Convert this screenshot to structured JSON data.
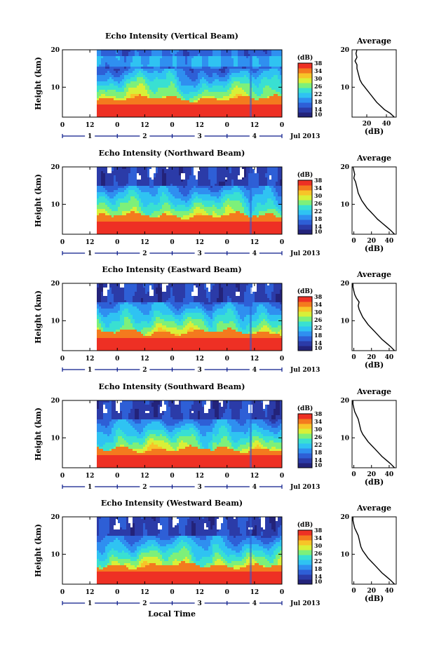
{
  "figure": {
    "day_axis_label": "Jul 2013",
    "bottom_xlabel": "Local Time"
  },
  "colors": {
    "colormap": [
      "#23237a",
      "#2b3ba8",
      "#2e5fd6",
      "#2f8ff0",
      "#2fc3f2",
      "#39e0d2",
      "#7df07a",
      "#d8f038",
      "#f7c428",
      "#f47a1e",
      "#ee3024"
    ]
  },
  "chart_data": [
    {
      "type": "heatmap",
      "title": "Echo Intensity (Vertical Beam)",
      "ylabel": "Height (km)",
      "ylim": [
        2,
        20
      ],
      "yticks": [
        10,
        20
      ],
      "hour_ticks": [
        "0",
        "12",
        "0",
        "12",
        "0",
        "12",
        "0",
        "12",
        "0"
      ],
      "day_ticks": [
        "1",
        "2",
        "3",
        "4"
      ],
      "data_start_hour": 15,
      "colorbar": {
        "label": "(dB)",
        "ticks": [
          "10",
          "14",
          "18",
          "22",
          "26",
          "30",
          "34",
          "38"
        ],
        "range": [
          10,
          38
        ]
      },
      "profile": {
        "title": "Average",
        "xlabel": "(dB)",
        "xticks": [
          "20",
          "40"
        ],
        "xlim": [
          5,
          50
        ],
        "height_km": [
          2,
          3,
          4,
          5,
          6,
          7,
          8,
          9,
          10,
          11,
          12,
          13,
          14,
          15,
          16,
          17,
          18,
          19,
          20
        ],
        "db": [
          48,
          44,
          38,
          34,
          30,
          27,
          24,
          21,
          18,
          15,
          13,
          12,
          11,
          10,
          10,
          8,
          10,
          9,
          10
        ]
      }
    },
    {
      "type": "heatmap",
      "title": "Echo Intensity (Northward Beam)",
      "ylabel": "Height (km)",
      "ylim": [
        2,
        20
      ],
      "yticks": [
        10,
        20
      ],
      "hour_ticks": [
        "0",
        "12",
        "0",
        "12",
        "0",
        "12",
        "0",
        "12",
        "0"
      ],
      "day_ticks": [
        "1",
        "2",
        "3",
        "4"
      ],
      "data_start_hour": 15,
      "colorbar": {
        "label": "(dB)",
        "ticks": [
          "10",
          "14",
          "18",
          "22",
          "26",
          "30",
          "34",
          "38"
        ],
        "range": [
          10,
          38
        ]
      },
      "profile": {
        "title": "Average",
        "xlabel": "(dB)",
        "xticks": [
          "0",
          "20",
          "40"
        ],
        "xlim": [
          -2,
          48
        ],
        "height_km": [
          2,
          3,
          4,
          5,
          6,
          7,
          8,
          9,
          10,
          11,
          12,
          13,
          14,
          15,
          16,
          17,
          18,
          19,
          20
        ],
        "db": [
          46,
          42,
          37,
          32,
          27,
          23,
          19,
          15,
          12,
          9,
          7,
          5,
          4,
          3,
          2,
          0,
          1,
          0,
          -1
        ]
      }
    },
    {
      "type": "heatmap",
      "title": "Echo Intensity (Eastward Beam)",
      "ylabel": "Height (km)",
      "ylim": [
        2,
        20
      ],
      "yticks": [
        10,
        20
      ],
      "hour_ticks": [
        "0",
        "12",
        "0",
        "12",
        "0",
        "12",
        "0",
        "12",
        "0"
      ],
      "day_ticks": [
        "1",
        "2",
        "3",
        "4"
      ],
      "data_start_hour": 15,
      "colorbar": {
        "label": "(dB)",
        "ticks": [
          "10",
          "14",
          "18",
          "22",
          "26",
          "30",
          "34",
          "38"
        ],
        "range": [
          10,
          38
        ]
      },
      "profile": {
        "title": "Average",
        "xlabel": "(dB)",
        "xticks": [
          "0",
          "20",
          "40"
        ],
        "xlim": [
          -2,
          48
        ],
        "height_km": [
          2,
          3,
          4,
          5,
          6,
          7,
          8,
          9,
          10,
          11,
          12,
          13,
          14,
          15,
          16,
          17,
          18,
          19,
          20
        ],
        "db": [
          46,
          42,
          37,
          32,
          28,
          24,
          20,
          16,
          13,
          10,
          8,
          6,
          5,
          6,
          3,
          1,
          0,
          -1,
          -1
        ]
      }
    },
    {
      "type": "heatmap",
      "title": "Echo Intensity (Southward Beam)",
      "ylabel": "Height (km)",
      "ylim": [
        2,
        20
      ],
      "yticks": [
        10,
        20
      ],
      "hour_ticks": [
        "0",
        "12",
        "0",
        "12",
        "0",
        "12",
        "0",
        "12",
        "0"
      ],
      "day_ticks": [
        "1",
        "2",
        "3",
        "4"
      ],
      "data_start_hour": 15,
      "colorbar": {
        "label": "(dB)",
        "ticks": [
          "10",
          "14",
          "18",
          "22",
          "26",
          "30",
          "34",
          "38"
        ],
        "range": [
          10,
          38
        ]
      },
      "profile": {
        "title": "Average",
        "xlabel": "(dB)",
        "xticks": [
          "0",
          "20",
          "40"
        ],
        "xlim": [
          -2,
          48
        ],
        "height_km": [
          2,
          3,
          4,
          5,
          6,
          7,
          8,
          9,
          10,
          11,
          12,
          13,
          14,
          15,
          16,
          17,
          18,
          19,
          20
        ],
        "db": [
          46,
          42,
          37,
          32,
          28,
          24,
          20,
          16,
          13,
          10,
          8,
          7,
          6,
          5,
          3,
          1,
          0,
          -1,
          -1
        ]
      }
    },
    {
      "type": "heatmap",
      "title": "Echo Intensity (Westward Beam)",
      "ylabel": "Height (km)",
      "ylim": [
        2,
        20
      ],
      "yticks": [
        10,
        20
      ],
      "hour_ticks": [
        "0",
        "12",
        "0",
        "12",
        "0",
        "12",
        "0",
        "12",
        "0"
      ],
      "day_ticks": [
        "1",
        "2",
        "3",
        "4"
      ],
      "data_start_hour": 15,
      "colorbar": {
        "label": "(dB)",
        "ticks": [
          "10",
          "14",
          "18",
          "22",
          "26",
          "30",
          "34",
          "38"
        ],
        "range": [
          10,
          38
        ]
      },
      "profile": {
        "title": "Average",
        "xlabel": "(dB)",
        "xticks": [
          "0",
          "20",
          "40"
        ],
        "xlim": [
          -2,
          48
        ],
        "height_km": [
          2,
          3,
          4,
          5,
          6,
          7,
          8,
          9,
          10,
          11,
          12,
          13,
          14,
          15,
          16,
          17,
          18,
          19,
          20
        ],
        "db": [
          46,
          42,
          37,
          32,
          28,
          24,
          20,
          16,
          13,
          10,
          8,
          7,
          6,
          5,
          3,
          1,
          0,
          -1,
          -1
        ]
      }
    }
  ]
}
